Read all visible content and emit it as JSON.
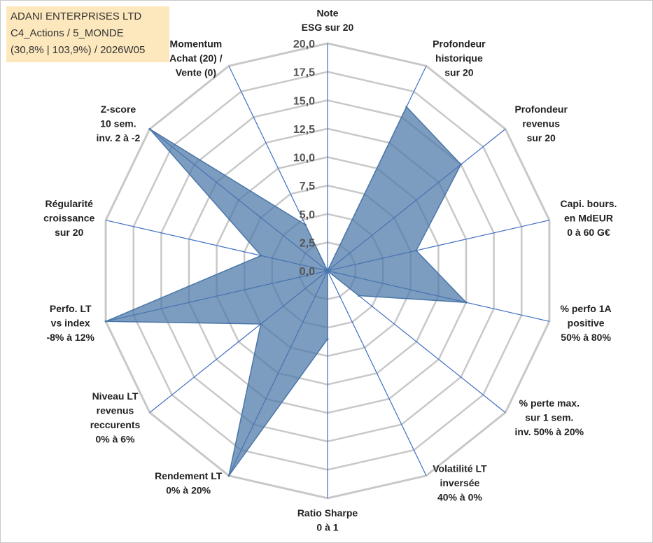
{
  "info_box": {
    "line1": "ADANI ENTERPRISES LTD",
    "line2": "C4_Actions / 5_MONDE",
    "line3": "(30,8% | 103,9%) / 2026W05"
  },
  "colors": {
    "fill": "#4a76a8",
    "axis_spoke": "#3f6ec2",
    "grid": "#c8c8c8"
  },
  "chart_data": {
    "type": "radar",
    "rmin": 0,
    "rmax": 20,
    "tick_step": 2.5,
    "tick_labels": [
      "0,0",
      "2,5",
      "5,0",
      "7,5",
      "10,0",
      "12,5",
      "15,0",
      "17,5",
      "20,0"
    ],
    "axes": [
      {
        "label": [
          "Note",
          "ESG sur 20"
        ],
        "value": 0
      },
      {
        "label": [
          "Profondeur",
          "historique",
          "sur 20"
        ],
        "value": 16
      },
      {
        "label": [
          "Profondeur",
          "revenus",
          "sur 20"
        ],
        "value": 15
      },
      {
        "label": [
          "Capi. bours.",
          "en MdEUR",
          "0 à 60 G€"
        ],
        "value": 8
      },
      {
        "label": [
          "% perfo 1A",
          "positive",
          "50% à 80%"
        ],
        "value": 12.5
      },
      {
        "label": [
          "% perte max.",
          "sur 1 sem.",
          "inv. 50% à 20%"
        ],
        "value": 3.5
      },
      {
        "label": [
          "Volatilité LT",
          "inversée",
          "40% à 0%"
        ],
        "value": 0
      },
      {
        "label": [
          "Ratio Sharpe",
          "0 à 1"
        ],
        "value": 6
      },
      {
        "label": [
          "Rendement LT",
          "0% à 20%"
        ],
        "value": 20
      },
      {
        "label": [
          "Niveau LT",
          "revenus",
          "reccurents",
          "0% à 6%"
        ],
        "value": 7.5
      },
      {
        "label": [
          "Perfo. LT",
          "vs index",
          "-8% à 12%"
        ],
        "value": 20
      },
      {
        "label": [
          "Régularité",
          "croissance",
          "sur 20"
        ],
        "value": 6
      },
      {
        "label": [
          "Z-score",
          "10 sem.",
          "inv. 2 à -2"
        ],
        "value": 20
      },
      {
        "label": [
          "Momentum",
          "Achat (20) /",
          "Vente (0)"
        ],
        "value": 4.5
      }
    ]
  }
}
